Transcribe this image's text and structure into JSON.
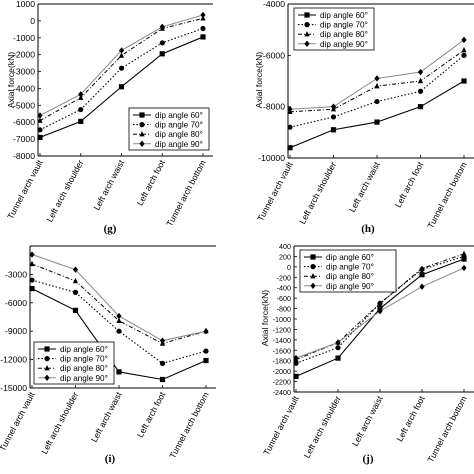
{
  "categories": [
    "Tunnel arch vault",
    "Left arch shoulder",
    "Left arch waist",
    "Left arch foot",
    "Tunnel arch bottom"
  ],
  "legend_labels": [
    "dip angle 60°",
    "dip angle 70°",
    "dip angle 80°",
    "dip angle 90°"
  ],
  "chart_data": [
    {
      "type": "line",
      "panel_label": "(g)",
      "ylabel": "Axial force(kN)",
      "ylim": [
        -8000,
        1000
      ],
      "yticks": [
        -8000,
        -7000,
        -6000,
        -5000,
        -4000,
        -3000,
        -2000,
        -1000,
        0,
        1000
      ],
      "legend_position": "bottom-right",
      "categories": [
        "Tunnel arch vault",
        "Left arch shoulder",
        "Left arch waist",
        "Left arch foot",
        "Tunnel arch bottom"
      ],
      "series": [
        {
          "name": "dip angle 60°",
          "marker": "square",
          "line": "solid",
          "values": [
            -6900,
            -5950,
            -3900,
            -1950,
            -950
          ]
        },
        {
          "name": "dip angle 70°",
          "marker": "circle",
          "line": "dotted",
          "values": [
            -6450,
            -5250,
            -2800,
            -1300,
            -450
          ]
        },
        {
          "name": "dip angle 80°",
          "marker": "triangle",
          "line": "dashdot",
          "values": [
            -5900,
            -4550,
            -2050,
            -450,
            150
          ]
        },
        {
          "name": "dip angle 90°",
          "marker": "diamond",
          "line": "solid-gray",
          "values": [
            -5600,
            -4350,
            -1750,
            -350,
            350
          ]
        }
      ]
    },
    {
      "type": "line",
      "panel_label": "(h)",
      "ylabel": "Axial force(kN)",
      "ylim": [
        -10000,
        -4000
      ],
      "yticks": [
        -10000,
        -8000,
        -6000,
        -4000
      ],
      "legend_position": "top-left",
      "categories": [
        "Tunnel arch vault",
        "Left arch shoulder",
        "Left arch waist",
        "Left arch foot",
        "Tunnel arch bottom"
      ],
      "series": [
        {
          "name": "dip angle 60°",
          "marker": "square",
          "line": "solid",
          "values": [
            -9600,
            -8900,
            -8600,
            -8000,
            -7000
          ]
        },
        {
          "name": "dip angle 70°",
          "marker": "circle",
          "line": "dotted",
          "values": [
            -8800,
            -8400,
            -7800,
            -7400,
            -6000
          ]
        },
        {
          "name": "dip angle 80°",
          "marker": "triangle",
          "line": "dashdot",
          "values": [
            -8200,
            -8100,
            -7200,
            -7000,
            -5800
          ]
        },
        {
          "name": "dip angle 90°",
          "marker": "diamond",
          "line": "solid-gray",
          "values": [
            -8100,
            -8000,
            -6900,
            -6650,
            -5400
          ]
        }
      ]
    },
    {
      "type": "line",
      "panel_label": "(i)",
      "ylabel": "",
      "ylim": [
        -15000,
        0
      ],
      "yticks": [
        -15000,
        -12000,
        -9000,
        -6000,
        -3000
      ],
      "legend_position": "bottom-left",
      "categories": [
        "Tunnel arch vault",
        "Left arch shoulder",
        "Left arch waist",
        "Left arch foot",
        "Tunnel arch bottom"
      ],
      "series": [
        {
          "name": "dip angle 60°",
          "marker": "square",
          "line": "solid",
          "values": [
            -4500,
            -6800,
            -13300,
            -14100,
            -12100
          ]
        },
        {
          "name": "dip angle 70°",
          "marker": "circle",
          "line": "dotted",
          "values": [
            -3600,
            -4900,
            -9000,
            -12400,
            -11100
          ]
        },
        {
          "name": "dip angle 80°",
          "marker": "triangle",
          "line": "dashdot",
          "values": [
            -1900,
            -3700,
            -7900,
            -10300,
            -9000
          ]
        },
        {
          "name": "dip angle 90°",
          "marker": "diamond",
          "line": "solid-gray",
          "values": [
            -900,
            -2500,
            -7400,
            -10000,
            -9000
          ]
        }
      ]
    },
    {
      "type": "line",
      "panel_label": "(j)",
      "ylabel": "Axial force(kN)",
      "ylim": [
        -2400,
        400
      ],
      "yticks": [
        -2400,
        -2200,
        -2000,
        -1800,
        -1600,
        -1400,
        -1200,
        -1000,
        -800,
        -600,
        -400,
        -200,
        0,
        200,
        400
      ],
      "legend_position": "top-left",
      "categories": [
        "Tunnel arch vault",
        "Left arch shoulder",
        "Left arch waist",
        "Left arch foot",
        "Tunnel arch bottom"
      ],
      "series": [
        {
          "name": "dip angle 60°",
          "marker": "square",
          "line": "solid",
          "values": [
            -2100,
            -1750,
            -800,
            -150,
            150
          ]
        },
        {
          "name": "dip angle 70°",
          "marker": "circle",
          "line": "dotted",
          "values": [
            -1850,
            -1550,
            -700,
            -50,
            200
          ]
        },
        {
          "name": "dip angle 80°",
          "marker": "triangle",
          "line": "dashdot",
          "values": [
            -1780,
            -1450,
            -700,
            -30,
            250
          ]
        },
        {
          "name": "dip angle 90°",
          "marker": "diamond",
          "line": "solid-gray",
          "values": [
            -1750,
            -1450,
            -850,
            -380,
            -20
          ]
        }
      ]
    }
  ]
}
